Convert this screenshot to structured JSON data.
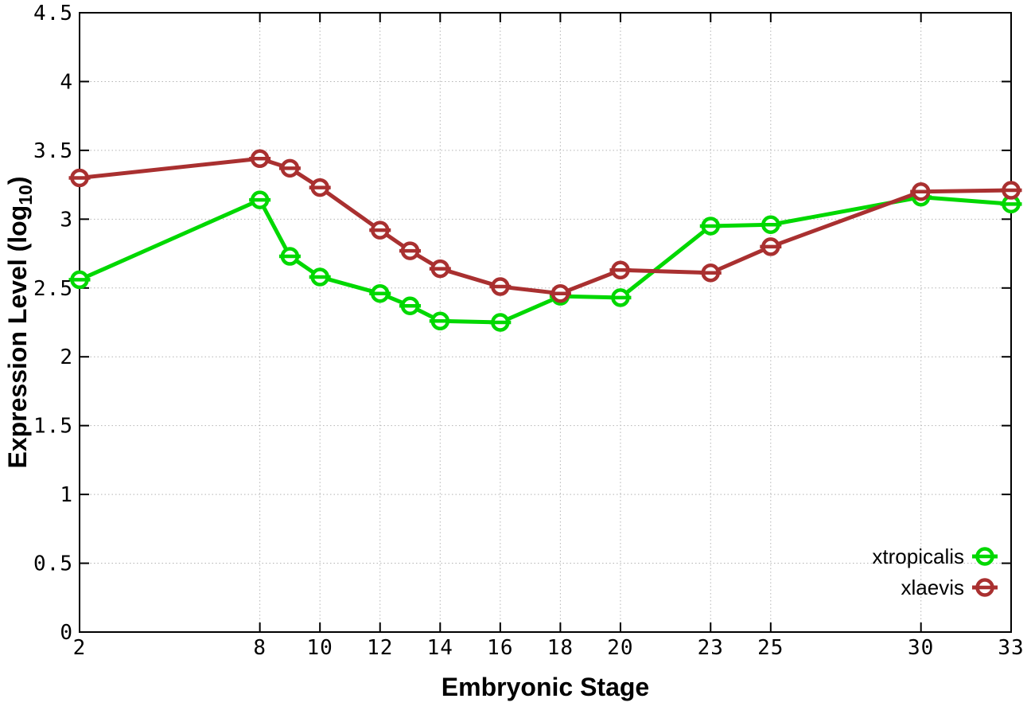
{
  "figure": {
    "xlabel": "Embryonic Stage",
    "ylabel": {
      "prefix": "Expression Level (log",
      "sub": "10",
      "suffix": ")"
    }
  },
  "chart_data": {
    "type": "line",
    "title": "",
    "xlabel": "Embryonic Stage",
    "ylabel": "Expression Level (log10)",
    "x": [
      2,
      8,
      9,
      10,
      12,
      13,
      14,
      16,
      18,
      20,
      23,
      25,
      30,
      33
    ],
    "series": [
      {
        "name": "xtropicalis",
        "color": "#00d800",
        "values": [
          2.56,
          3.14,
          2.73,
          2.58,
          2.46,
          2.37,
          2.26,
          2.25,
          2.44,
          2.43,
          2.95,
          2.96,
          3.16,
          3.11
        ]
      },
      {
        "name": "xlaevis",
        "color": "#a93030",
        "values": [
          3.3,
          3.44,
          3.37,
          3.23,
          2.92,
          2.77,
          2.64,
          2.51,
          2.46,
          2.63,
          2.61,
          2.8,
          3.2,
          3.21
        ]
      }
    ],
    "xlim": [
      2,
      33
    ],
    "ylim": [
      0,
      4.5
    ],
    "xticks": [
      2,
      8,
      10,
      12,
      14,
      16,
      18,
      20,
      23,
      25,
      30,
      33
    ],
    "yticks": [
      0,
      0.5,
      1,
      1.5,
      2,
      2.5,
      3,
      3.5,
      4,
      4.5
    ],
    "grid": true,
    "grid_color": "#b4b4b4",
    "border_color": "#000000",
    "background": "#ffffff",
    "marker": "open-circle-with-horizontal-bar",
    "legend_position": "inside-bottom-right"
  }
}
